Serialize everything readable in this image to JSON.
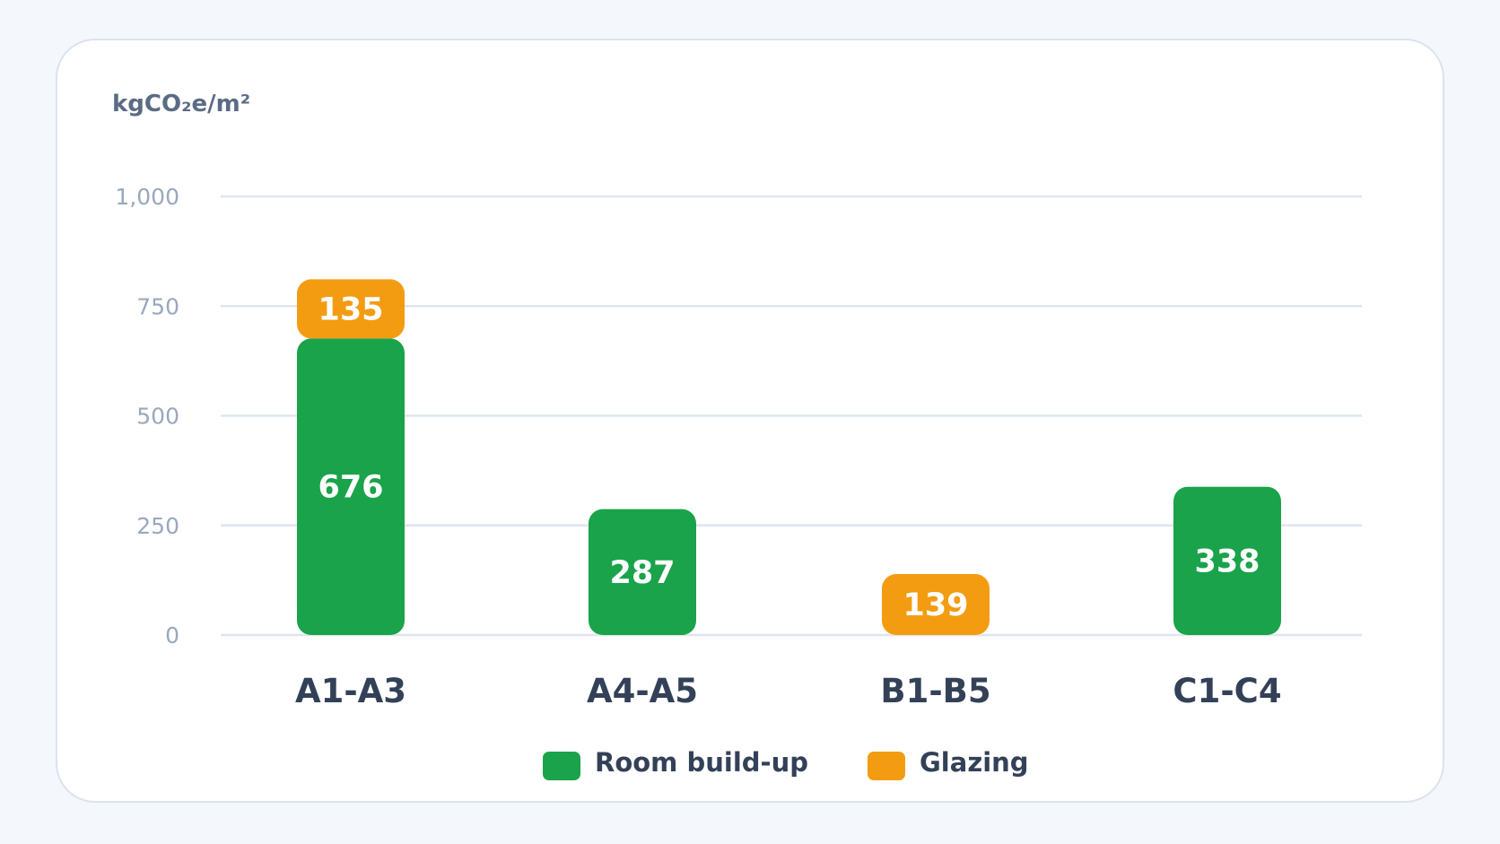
{
  "chart_data": {
    "type": "bar",
    "stacked": true,
    "unit_label": "kgCO₂e/m²",
    "categories": [
      "A1-A3",
      "A4-A5",
      "B1-B5",
      "C1-C4"
    ],
    "series": [
      {
        "name": "Room build-up",
        "color": "#1aa34a",
        "values": [
          676,
          287,
          0,
          338
        ]
      },
      {
        "name": "Glazing",
        "color": "#f39c12",
        "values": [
          135,
          0,
          139,
          0
        ]
      }
    ],
    "ylim": [
      0,
      1000
    ],
    "yticks": [
      0,
      250,
      500,
      750,
      1000
    ],
    "ytick_labels": [
      "0",
      "250",
      "500",
      "750",
      "1,000"
    ],
    "grid": true,
    "legend_position": "bottom"
  }
}
